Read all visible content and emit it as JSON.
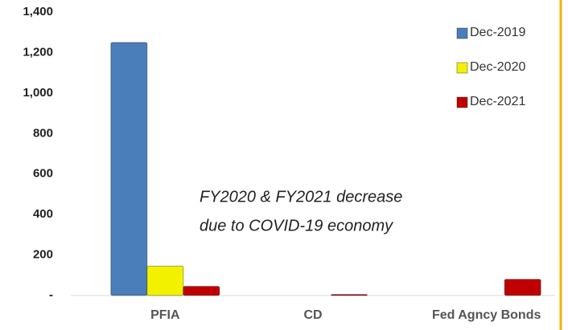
{
  "chart_data": {
    "type": "bar",
    "categories": [
      "PFIA",
      "CD",
      "Fed Agncy Bonds"
    ],
    "series": [
      {
        "name": "Dec-2019",
        "color": "#4a7ebb",
        "values": [
          1250,
          0,
          0
        ]
      },
      {
        "name": "Dec-2020",
        "color": "#f2f200",
        "values": [
          145,
          0,
          0
        ]
      },
      {
        "name": "Dec-2021",
        "color": "#c00000",
        "values": [
          45,
          5,
          80
        ]
      }
    ],
    "ylim": [
      0,
      1400
    ],
    "yticks": [
      {
        "value": 0,
        "label": "-"
      },
      200,
      400,
      600,
      800,
      {
        "value": 1000,
        "label": "1,000"
      },
      {
        "value": 1200,
        "label": "1,200"
      },
      {
        "value": 1400,
        "label": "1,400"
      }
    ],
    "grid": false,
    "legend": "upper right",
    "annotation": [
      "FY2020 & FY2021 decrease",
      "due to COVID-19 economy"
    ]
  }
}
